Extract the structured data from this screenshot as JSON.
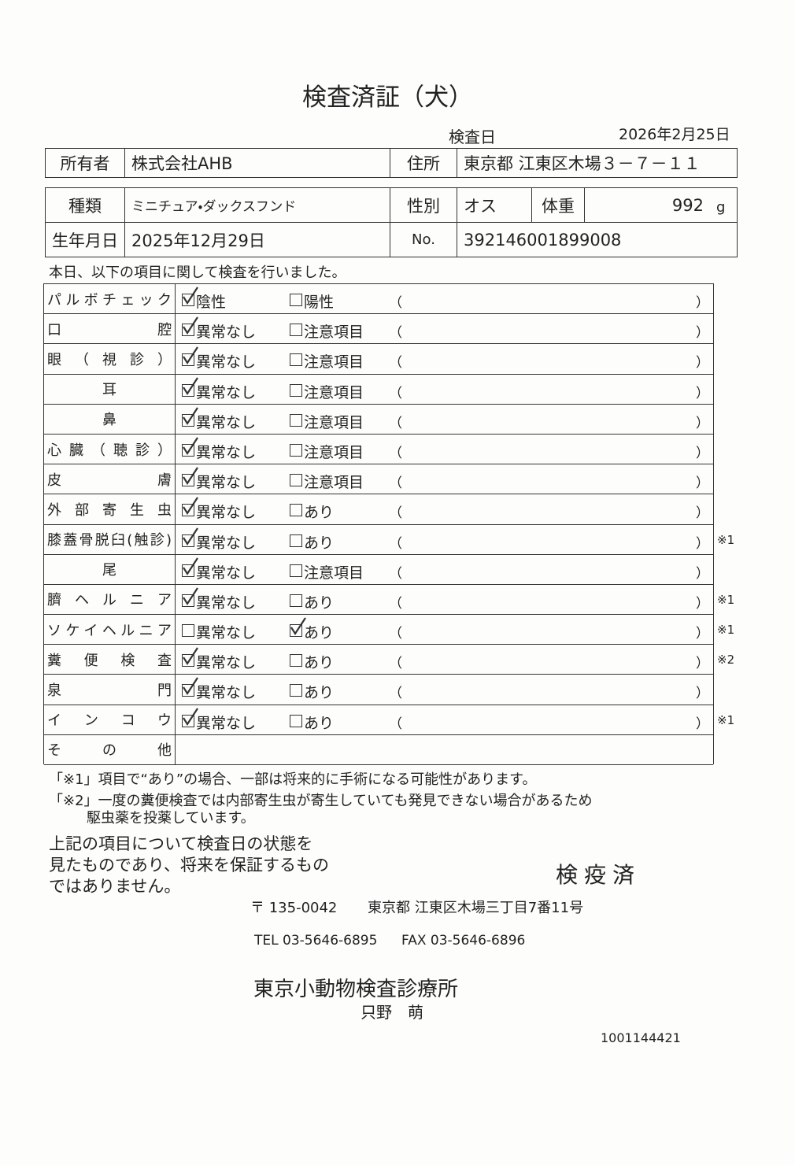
{
  "title": "検査済証（犬）",
  "exam_date": {
    "label": "検査日",
    "value": "2026年2月25日"
  },
  "owner_table": {
    "owner_label": "所有者",
    "owner": "株式会社AHB",
    "address_label": "住所",
    "address": "東京都 江東区木場３－７－１１"
  },
  "animal_table": {
    "kind_label": "種類",
    "kind": "ミニチュア・ダックスフンド",
    "sex_label": "性別",
    "sex": "オス",
    "weight_label": "体重",
    "weight": "992",
    "weight_unit": "g",
    "birth_label": "生年月日",
    "birth": "2025年12月29日",
    "no_label": "No.",
    "no": "392146001899008"
  },
  "intro": "本日、以下の項目に関して検査を行いました。",
  "checks_table": {
    "paren_open": "（",
    "paren_close": "）",
    "rows": [
      {
        "item": "パルボチェック",
        "ok": "陰性",
        "ng": "陽性",
        "checked": "ok"
      },
      {
        "item": "口腔",
        "ok": "異常なし",
        "ng": "注意項目",
        "checked": "ok"
      },
      {
        "item": "眼（視診）",
        "ok": "異常なし",
        "ng": "注意項目",
        "checked": "ok"
      },
      {
        "item": "耳",
        "ok": "異常なし",
        "ng": "注意項目",
        "checked": "ok"
      },
      {
        "item": "鼻",
        "ok": "異常なし",
        "ng": "注意項目",
        "checked": "ok"
      },
      {
        "item": "心臓（聴診）",
        "ok": "異常なし",
        "ng": "注意項目",
        "checked": "ok"
      },
      {
        "item": "皮膚",
        "ok": "異常なし",
        "ng": "注意項目",
        "checked": "ok"
      },
      {
        "item": "外部寄生虫",
        "ok": "異常なし",
        "ng": "あり",
        "checked": "ok"
      },
      {
        "item": "膝蓋骨脱臼(触診)",
        "ok": "異常なし",
        "ng": "あり",
        "checked": "ok",
        "note": "※1"
      },
      {
        "item": "尾",
        "ok": "異常なし",
        "ng": "注意項目",
        "checked": "ok"
      },
      {
        "item": "臍ヘルニア",
        "ok": "異常なし",
        "ng": "あり",
        "checked": "ok",
        "note": "※1"
      },
      {
        "item": "ソケイヘルニア",
        "ok": "異常なし",
        "ng": "あり",
        "checked": "ng",
        "note": "※1"
      },
      {
        "item": "糞便検査",
        "ok": "異常なし",
        "ng": "あり",
        "checked": "ok",
        "note": "※2"
      },
      {
        "item": "泉門",
        "ok": "異常なし",
        "ng": "あり",
        "checked": "ok"
      },
      {
        "item": "インコウ",
        "ok": "異常なし",
        "ng": "あり",
        "checked": "ok",
        "note": "※1"
      },
      {
        "item": "その他"
      }
    ]
  },
  "footnotes": [
    "「※1」項目で“あり”の場合、一部は将来的に手術になる可能性があります。",
    "「※2」一度の糞便検査では内部寄生虫が寄生していても発見できない場合があるため",
    "駆虫薬を投薬しています。"
  ],
  "disclaimer": [
    "上記の項目について検査日の状態を",
    "見たものであり、将来を保証するもの",
    "ではありません。"
  ],
  "stamp": "検疫済",
  "clinic": {
    "postal": "〒 135-0042",
    "address": "東京都 江東区木場三丁目7番11号",
    "tel": "TEL 03-5646-6895",
    "fax": "FAX 03-5646-6896",
    "name": "東京小動物検査診療所",
    "person": "只野　萌"
  },
  "document_id": "1001144421"
}
